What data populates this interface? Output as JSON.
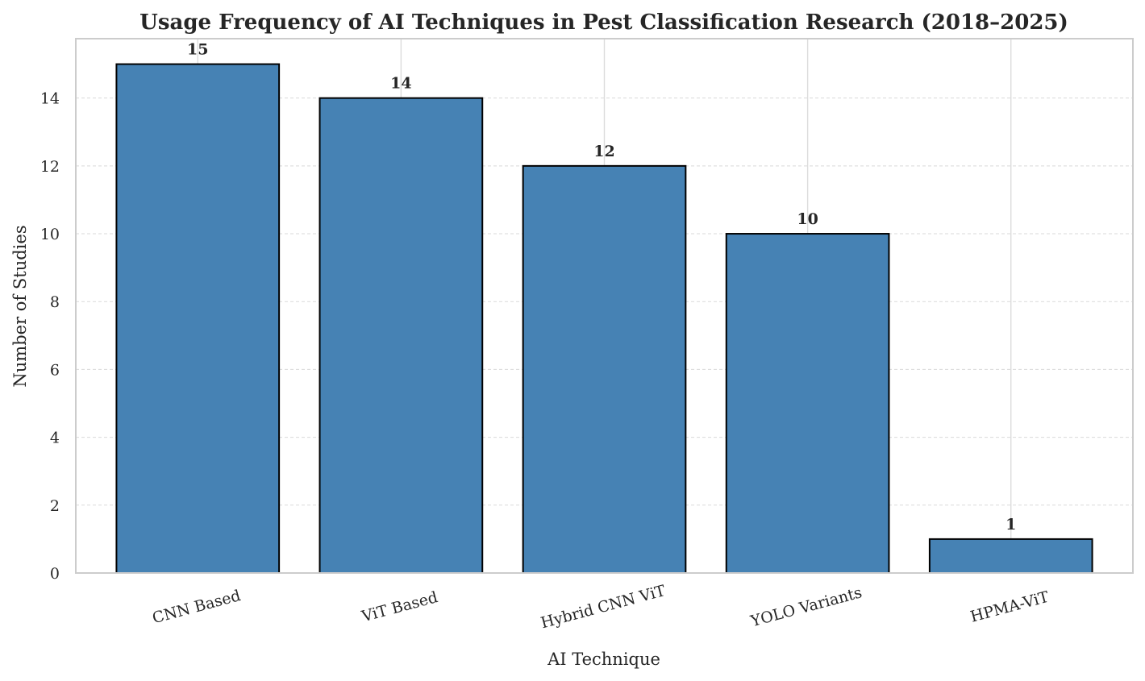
{
  "chart_data": {
    "type": "bar",
    "title": "Usage Frequency of AI Techniques in Pest Classification Research (2018–2025)",
    "xlabel": "AI Technique",
    "ylabel": "Number of Studies",
    "categories": [
      "CNN Based",
      "ViT Based",
      "Hybrid CNN ViT",
      "YOLO Variants",
      "HPMA-ViT"
    ],
    "values": [
      15,
      14,
      12,
      10,
      1
    ],
    "data_labels": [
      "15",
      "14",
      "12",
      "10",
      "1"
    ],
    "ylim": [
      0,
      15.75
    ],
    "yticks": [
      0,
      2,
      4,
      6,
      8,
      10,
      12,
      14
    ],
    "ytick_labels": [
      "0",
      "2",
      "4",
      "6",
      "8",
      "10",
      "12",
      "14"
    ],
    "bar_color": "#4682b4",
    "bar_edge_color": "#000000",
    "grid": true,
    "legend": false
  }
}
